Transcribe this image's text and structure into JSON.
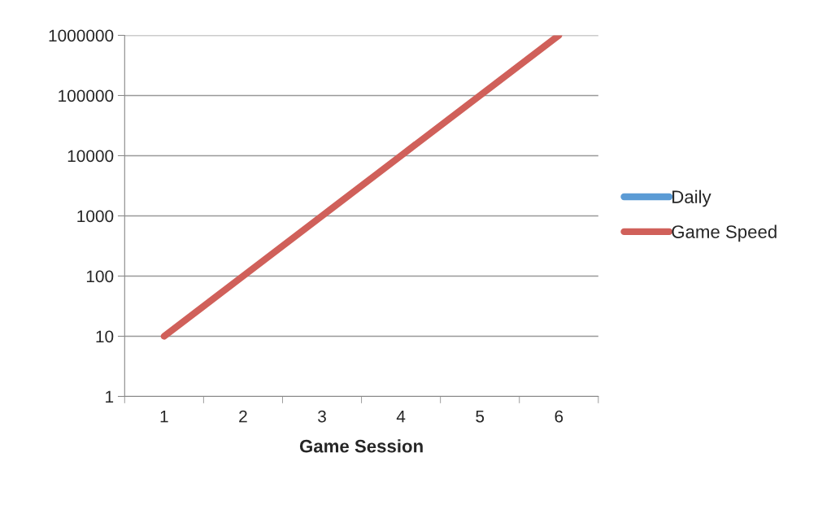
{
  "chart_data": {
    "type": "line",
    "xlabel": "Game Session",
    "categories": [
      "1",
      "2",
      "3",
      "4",
      "5",
      "6"
    ],
    "series": [
      {
        "name": "Daily",
        "color": "#5b9bd5",
        "values": [
          null,
          null,
          null,
          null,
          null,
          null
        ]
      },
      {
        "name": "Game Speed",
        "color": "#d0605a",
        "values": [
          10,
          100,
          1000,
          10000,
          100000,
          1000000
        ]
      }
    ],
    "log": "y",
    "ylim": [
      1,
      1000000
    ],
    "yticks": [
      1,
      10,
      100,
      1000,
      10000,
      100000,
      1000000
    ],
    "grid": "y",
    "legend": "right",
    "marker": "none",
    "line_style": "solid"
  }
}
